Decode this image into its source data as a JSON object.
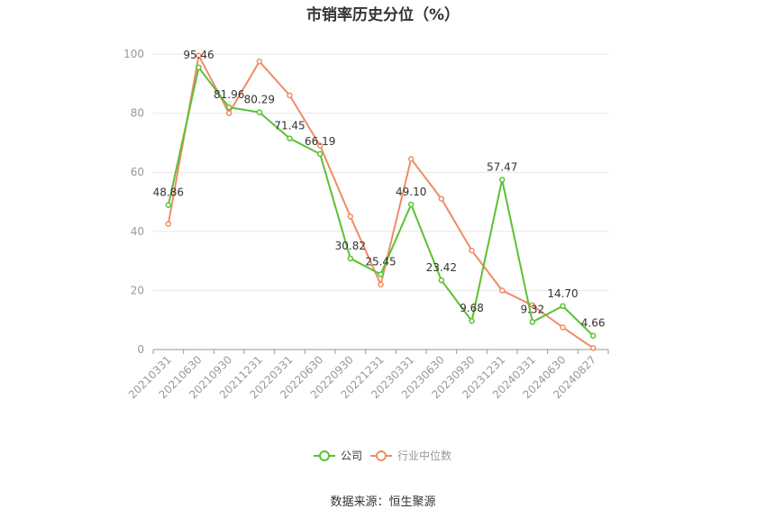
{
  "chart_data": {
    "type": "line",
    "title": "市销率历史分位（%）",
    "categories": [
      "20210331",
      "20210630",
      "20210930",
      "20211231",
      "20220331",
      "20220630",
      "20220930",
      "20221231",
      "20230331",
      "20230630",
      "20230930",
      "20231231",
      "20240331",
      "20240630",
      "20240827"
    ],
    "series": [
      {
        "name": "公司",
        "color": "#5ac133",
        "values": [
          48.86,
          95.46,
          81.96,
          80.29,
          71.45,
          66.19,
          30.82,
          25.45,
          49.1,
          23.42,
          9.68,
          57.47,
          9.32,
          14.7,
          4.66
        ],
        "labels": [
          "48.86",
          "95.46",
          "81.96",
          "80.29",
          "71.45",
          "66.19",
          "30.82",
          "25.45",
          "49.10",
          "23.42",
          "9.68",
          "57.47",
          "9.32",
          "14.70",
          "4.66"
        ]
      },
      {
        "name": "行业中位数",
        "color": "#f08c64",
        "values": [
          42.5,
          99.5,
          80.0,
          97.5,
          86.0,
          69.0,
          45.0,
          22.0,
          64.5,
          51.0,
          33.5,
          20.0,
          15.0,
          7.5,
          0.5
        ]
      }
    ],
    "yticks": [
      0,
      20,
      40,
      60,
      80,
      100
    ],
    "ylim": [
      0,
      100
    ],
    "grid": true,
    "legend_position": "bottom"
  },
  "source": "数据来源：恒生聚源"
}
